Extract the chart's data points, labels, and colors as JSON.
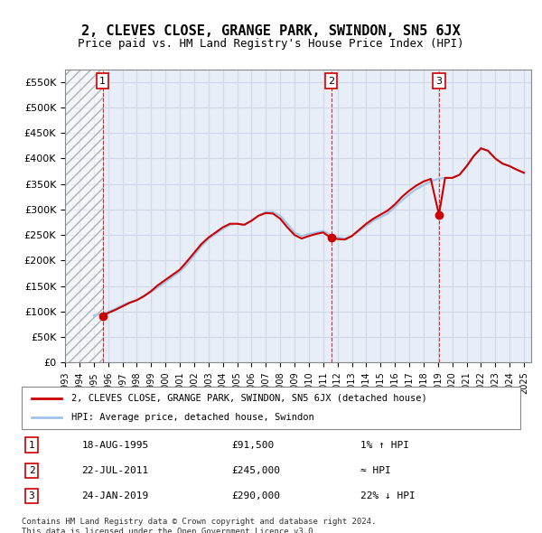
{
  "title": "2, CLEVES CLOSE, GRANGE PARK, SWINDON, SN5 6JX",
  "subtitle": "Price paid vs. HM Land Registry's House Price Index (HPI)",
  "ylabel": "",
  "xlim_left": 1993.0,
  "xlim_right": 2025.5,
  "ylim_bottom": 0,
  "ylim_top": 575000,
  "yticks": [
    0,
    50000,
    100000,
    150000,
    200000,
    250000,
    300000,
    350000,
    400000,
    450000,
    500000,
    550000
  ],
  "ytick_labels": [
    "£0",
    "£50K",
    "£100K",
    "£150K",
    "£200K",
    "£250K",
    "£300K",
    "£350K",
    "£400K",
    "£450K",
    "£500K",
    "£550K"
  ],
  "xticks": [
    1993,
    1994,
    1995,
    1996,
    1997,
    1998,
    1999,
    2000,
    2001,
    2002,
    2003,
    2004,
    2005,
    2006,
    2007,
    2008,
    2009,
    2010,
    2011,
    2012,
    2013,
    2014,
    2015,
    2016,
    2017,
    2018,
    2019,
    2020,
    2021,
    2022,
    2023,
    2024,
    2025
  ],
  "hpi_color": "#a0c4e8",
  "price_color": "#cc0000",
  "hatch_color": "#d0d0d0",
  "grid_color": "#d0d8e8",
  "bg_color": "#e8eef8",
  "transactions": [
    {
      "num": 1,
      "date": "18-AUG-1995",
      "x": 1995.62,
      "price": 91500,
      "label": "18-AUG-1995",
      "amount": "£91,500",
      "hpi_rel": "1% ↑ HPI"
    },
    {
      "num": 2,
      "date": "22-JUL-2011",
      "x": 2011.55,
      "price": 245000,
      "label": "22-JUL-2011",
      "amount": "£245,000",
      "hpi_rel": "≈ HPI"
    },
    {
      "num": 3,
      "date": "24-JAN-2019",
      "x": 2019.07,
      "price": 290000,
      "label": "24-JAN-2019",
      "amount": "£290,000",
      "hpi_rel": "22% ↓ HPI"
    }
  ],
  "hpi_data_x": [
    1995.0,
    1995.5,
    1996.0,
    1996.5,
    1997.0,
    1997.5,
    1998.0,
    1998.5,
    1999.0,
    1999.5,
    2000.0,
    2000.5,
    2001.0,
    2001.5,
    2002.0,
    2002.5,
    2003.0,
    2003.5,
    2004.0,
    2004.5,
    2005.0,
    2005.5,
    2006.0,
    2006.5,
    2007.0,
    2007.5,
    2008.0,
    2008.5,
    2009.0,
    2009.5,
    2010.0,
    2010.5,
    2011.0,
    2011.5,
    2012.0,
    2012.5,
    2013.0,
    2013.5,
    2014.0,
    2014.5,
    2015.0,
    2015.5,
    2016.0,
    2016.5,
    2017.0,
    2017.5,
    2018.0,
    2018.5,
    2019.0,
    2019.5,
    2020.0,
    2020.5,
    2021.0,
    2021.5,
    2022.0,
    2022.5,
    2023.0,
    2023.5,
    2024.0,
    2024.5,
    2025.0
  ],
  "hpi_data_y": [
    92000,
    95000,
    99000,
    105000,
    112000,
    118000,
    123000,
    130000,
    138000,
    148000,
    158000,
    168000,
    178000,
    192000,
    210000,
    228000,
    242000,
    252000,
    262000,
    270000,
    272000,
    270000,
    278000,
    288000,
    295000,
    295000,
    288000,
    272000,
    255000,
    248000,
    252000,
    255000,
    258000,
    250000,
    245000,
    243000,
    248000,
    258000,
    268000,
    278000,
    285000,
    292000,
    305000,
    318000,
    330000,
    340000,
    348000,
    355000,
    360000,
    362000,
    362000,
    368000,
    385000,
    405000,
    420000,
    415000,
    400000,
    390000,
    385000,
    378000,
    372000
  ],
  "price_data_x": [
    1995.62,
    1995.7,
    1996.0,
    1996.5,
    1997.0,
    1997.5,
    1998.0,
    1998.5,
    1999.0,
    1999.5,
    2000.0,
    2000.5,
    2001.0,
    2001.5,
    2002.0,
    2002.5,
    2003.0,
    2003.5,
    2004.0,
    2004.5,
    2005.0,
    2005.5,
    2006.0,
    2006.5,
    2007.0,
    2007.5,
    2008.0,
    2008.5,
    2009.0,
    2009.5,
    2010.0,
    2010.5,
    2011.0,
    2011.5,
    2012.0,
    2012.5,
    2013.0,
    2013.5,
    2014.0,
    2014.5,
    2015.0,
    2015.5,
    2016.0,
    2016.5,
    2017.0,
    2017.5,
    2018.0,
    2018.5,
    2019.07,
    2019.5,
    2020.0,
    2020.5,
    2021.0,
    2021.5,
    2022.0,
    2022.5,
    2023.0,
    2023.5,
    2024.0,
    2024.5,
    2025.0
  ],
  "price_data_y": [
    91500,
    93000,
    97000,
    103000,
    110000,
    117000,
    122000,
    130000,
    140000,
    152000,
    162000,
    172000,
    182000,
    198000,
    215000,
    232000,
    245000,
    255000,
    265000,
    272000,
    272000,
    270000,
    278000,
    288000,
    293000,
    292000,
    282000,
    265000,
    250000,
    243000,
    248000,
    252000,
    255000,
    245000,
    242000,
    241000,
    248000,
    260000,
    272000,
    282000,
    290000,
    298000,
    310000,
    325000,
    337000,
    347000,
    355000,
    360000,
    290000,
    362000,
    362000,
    368000,
    385000,
    405000,
    420000,
    415000,
    400000,
    390000,
    385000,
    378000,
    372000
  ],
  "legend_label_red": "2, CLEVES CLOSE, GRANGE PARK, SWINDON, SN5 6JX (detached house)",
  "legend_label_blue": "HPI: Average price, detached house, Swindon",
  "footer": "Contains HM Land Registry data © Crown copyright and database right 2024.\nThis data is licensed under the Open Government Licence v3.0."
}
